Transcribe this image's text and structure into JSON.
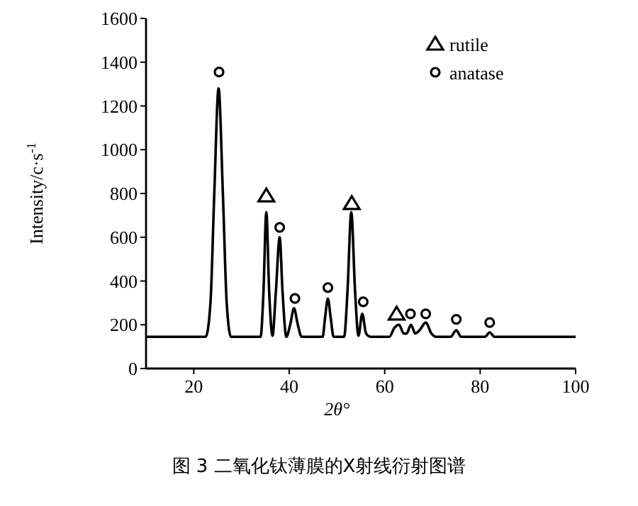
{
  "chart_data": {
    "type": "line",
    "xlabel": "2θ°",
    "ylabel": "Intensity/c·s$^{-1}$",
    "xlim": [
      10,
      100
    ],
    "ylim": [
      0,
      1600
    ],
    "xticks": [
      20,
      40,
      60,
      80,
      100
    ],
    "yticks": [
      0,
      200,
      400,
      600,
      800,
      1000,
      1200,
      1400,
      1600
    ],
    "grid": false,
    "legend": "top right",
    "annotations": [
      "图 3   二氧化钛薄膜的X射线衍射图谱"
    ],
    "series": [
      {
        "color": "#000000",
        "marker": "none",
        "x": [
          10,
          22.5,
          23.5,
          24.3,
          25.2,
          26.1,
          26.9,
          27.8,
          34,
          34.6,
          35.2,
          35.8,
          36.5,
          37.2,
          38,
          38.6,
          39.4,
          40.2,
          41,
          41.8,
          42.6,
          47,
          47.5,
          48.1,
          48.7,
          49.3,
          51.5,
          52.2,
          53,
          53.8,
          54.5,
          55.3,
          56.1,
          57,
          61,
          62,
          63,
          64,
          64.6,
          65.5,
          66.4,
          67.3,
          68.6,
          69.8,
          70.8,
          73.8,
          75,
          76,
          81,
          82,
          83,
          100
        ],
        "values": [
          145,
          145,
          300,
          800,
          1280,
          800,
          300,
          145,
          145,
          350,
          715,
          350,
          150,
          350,
          600,
          350,
          145,
          200,
          275,
          200,
          145,
          145,
          230,
          320,
          230,
          145,
          145,
          350,
          715,
          350,
          150,
          250,
          160,
          145,
          145,
          185,
          200,
          160,
          160,
          200,
          160,
          175,
          210,
          160,
          145,
          145,
          175,
          145,
          145,
          165,
          145,
          145
        ]
      },
      {
        "type": "scatter",
        "name": "rutile",
        "color": "#000000",
        "marker": "triangle",
        "x": [
          35.2,
          53.1,
          62.5
        ],
        "values": [
          790,
          755,
          250
        ]
      },
      {
        "type": "scatter",
        "name": "anatase",
        "color": "#000000",
        "marker": "circle",
        "x": [
          25.3,
          38,
          41.2,
          48.1,
          55.5,
          65.4,
          68.6,
          75,
          82
        ],
        "values": [
          1355,
          645,
          320,
          370,
          305,
          250,
          250,
          225,
          210
        ]
      }
    ]
  }
}
